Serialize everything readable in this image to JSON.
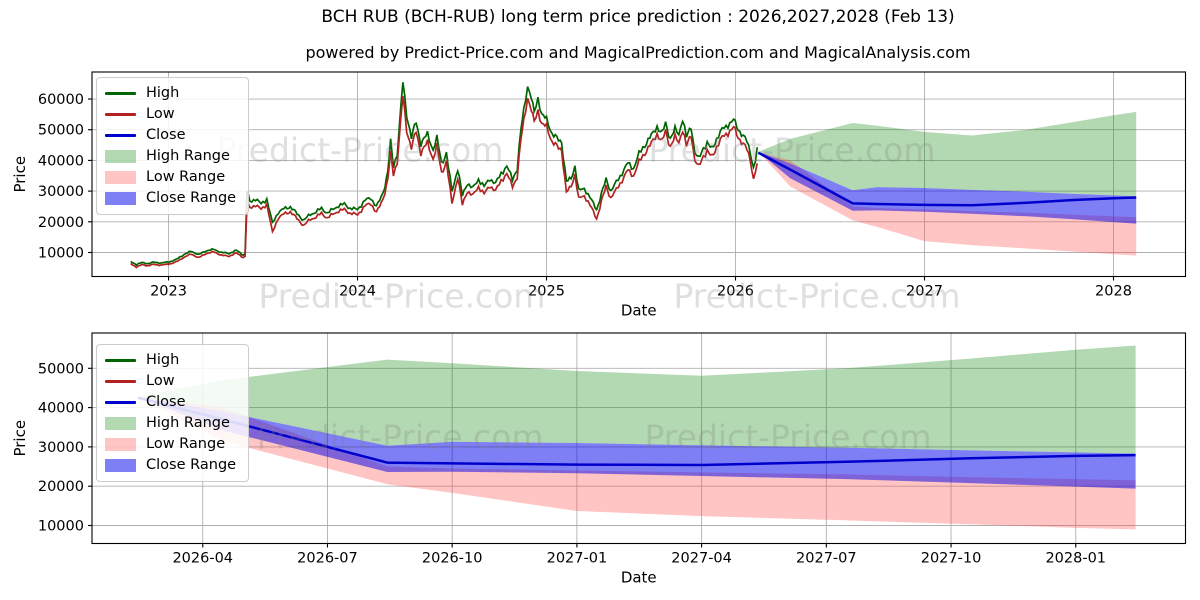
{
  "title": "BCH RUB (BCH-RUB) long term price prediction : 2026,2027,2028 (Feb 13)",
  "subtitle": "powered by Predict-Price.com and MagicalPrediction.com and MagicalAnalysis.com",
  "watermark": "Predict-Price.com",
  "colors": {
    "high_line": "#006400",
    "low_line": "#b22222",
    "close_line": "#0000cd",
    "high_band": "rgba(0,128,0,0.30)",
    "low_band": "rgba(255,70,70,0.32)",
    "close_band": "rgba(0,0,235,0.50)",
    "grid": "#b0b0b0",
    "axis": "#000000"
  },
  "legend": {
    "items": [
      {
        "label": "High",
        "swatch": "line",
        "color": "high_line"
      },
      {
        "label": "Low",
        "swatch": "line",
        "color": "low_line"
      },
      {
        "label": "Close",
        "swatch": "line",
        "color": "close_line"
      },
      {
        "label": "High Range",
        "swatch": "patch",
        "color": "high_band"
      },
      {
        "label": "Low Range",
        "swatch": "patch",
        "color": "low_band"
      },
      {
        "label": "Close Range",
        "swatch": "patch",
        "color": "close_band"
      }
    ]
  },
  "prediction": {
    "dates": [
      2026.12,
      2026.29,
      2026.62,
      2026.75,
      2027.0,
      2027.25,
      2027.54,
      2027.79,
      2028.0,
      2028.12
    ],
    "close": [
      42500,
      37000,
      26000,
      25800,
      25500,
      25400,
      26200,
      27100,
      27700,
      27900
    ],
    "high_top": [
      42800,
      47000,
      52200,
      51300,
      49300,
      48100,
      50000,
      52500,
      54700,
      55800
    ],
    "close_top": [
      42800,
      39000,
      30300,
      31300,
      31000,
      30400,
      29800,
      29100,
      28600,
      28300
    ],
    "close_bot": [
      42800,
      34200,
      23600,
      23700,
      23300,
      22600,
      21800,
      20800,
      19900,
      19400
    ],
    "low_top": [
      42800,
      40000,
      25000,
      24500,
      24000,
      23500,
      23000,
      22300,
      21800,
      21500
    ],
    "low_bot": [
      42800,
      31500,
      20500,
      18300,
      13700,
      12400,
      11300,
      10300,
      9400,
      9000
    ]
  },
  "noise": {
    "rel_amp": 0.027,
    "min_amp": 220,
    "max_amp": 1150
  },
  "chart_data": [
    {
      "type": "line",
      "name": "long-term",
      "title": "",
      "xlabel": "Date",
      "ylabel": "Price",
      "xlim": [
        2022.595,
        2028.381
      ],
      "ylim": [
        2180,
        68800
      ],
      "grid": true,
      "legend_position": "upper-left",
      "x_ticks": [
        {
          "label": "2023",
          "v": 2023
        },
        {
          "label": "2024",
          "v": 2024
        },
        {
          "label": "2025",
          "v": 2025
        },
        {
          "label": "2026",
          "v": 2026
        },
        {
          "label": "2027",
          "v": 2027
        },
        {
          "label": "2028",
          "v": 2028
        }
      ],
      "y_ticks": [
        10000,
        20000,
        30000,
        40000,
        50000,
        60000
      ],
      "historical_series_note": "triples of [decimal_year, low, high]",
      "historical": [
        [
          2022.8,
          6300,
          7000
        ],
        [
          2022.83,
          5300,
          6100
        ],
        [
          2022.86,
          6000,
          6700
        ],
        [
          2022.89,
          5700,
          6400
        ],
        [
          2022.92,
          6100,
          6800
        ],
        [
          2022.96,
          5900,
          6600
        ],
        [
          2023.0,
          6200,
          6900
        ],
        [
          2023.04,
          6900,
          7700
        ],
        [
          2023.08,
          8400,
          9300
        ],
        [
          2023.12,
          9500,
          10400
        ],
        [
          2023.16,
          8300,
          9300
        ],
        [
          2023.2,
          9700,
          10600
        ],
        [
          2023.24,
          10200,
          11000
        ],
        [
          2023.28,
          9100,
          10000
        ],
        [
          2023.32,
          8800,
          9700
        ],
        [
          2023.36,
          9800,
          10700
        ],
        [
          2023.395,
          8400,
          9200
        ],
        [
          2023.405,
          8700,
          9600
        ],
        [
          2023.415,
          26000,
          30000
        ],
        [
          2023.43,
          24500,
          26500
        ],
        [
          2023.46,
          25500,
          27500
        ],
        [
          2023.49,
          24000,
          25800
        ],
        [
          2023.52,
          25800,
          27400
        ],
        [
          2023.55,
          16500,
          19500
        ],
        [
          2023.58,
          21300,
          23100
        ],
        [
          2023.61,
          22500,
          24200
        ],
        [
          2023.645,
          23300,
          24900
        ],
        [
          2023.68,
          21000,
          22600
        ],
        [
          2023.715,
          18800,
          20500
        ],
        [
          2023.75,
          20800,
          22400
        ],
        [
          2023.78,
          21500,
          23200
        ],
        [
          2023.81,
          22800,
          24400
        ],
        [
          2023.84,
          21200,
          22800
        ],
        [
          2023.87,
          22500,
          24100
        ],
        [
          2023.9,
          23500,
          25200
        ],
        [
          2023.93,
          24000,
          25800
        ],
        [
          2023.96,
          22800,
          24400
        ],
        [
          2024.0,
          22300,
          24000
        ],
        [
          2024.04,
          25200,
          27000
        ],
        [
          2024.07,
          26000,
          27800
        ],
        [
          2024.1,
          23000,
          24900
        ],
        [
          2024.125,
          26000,
          28000
        ],
        [
          2024.145,
          29500,
          31600
        ],
        [
          2024.16,
          34000,
          36500
        ],
        [
          2024.175,
          42000,
          46000
        ],
        [
          2024.19,
          35500,
          38200
        ],
        [
          2024.21,
          39500,
          42200
        ],
        [
          2024.24,
          61000,
          65500
        ],
        [
          2024.26,
          50000,
          55000
        ],
        [
          2024.285,
          44000,
          47500
        ],
        [
          2024.31,
          49500,
          52500
        ],
        [
          2024.335,
          42500,
          45500
        ],
        [
          2024.37,
          45800,
          48600
        ],
        [
          2024.4,
          40500,
          43500
        ],
        [
          2024.42,
          44500,
          47200
        ],
        [
          2024.445,
          36000,
          39200
        ],
        [
          2024.47,
          39500,
          42200
        ],
        [
          2024.5,
          26000,
          30000
        ],
        [
          2024.53,
          34500,
          37200
        ],
        [
          2024.555,
          25500,
          28500
        ],
        [
          2024.58,
          30000,
          32600
        ],
        [
          2024.61,
          28500,
          30900
        ],
        [
          2024.64,
          31500,
          33900
        ],
        [
          2024.67,
          29000,
          31400
        ],
        [
          2024.7,
          31800,
          34100
        ],
        [
          2024.73,
          30000,
          32400
        ],
        [
          2024.76,
          33500,
          35900
        ],
        [
          2024.79,
          35500,
          37900
        ],
        [
          2024.82,
          31700,
          34100
        ],
        [
          2024.845,
          34500,
          37200
        ],
        [
          2024.865,
          47000,
          50200
        ],
        [
          2024.88,
          53000,
          56600
        ],
        [
          2024.9,
          60500,
          64300
        ],
        [
          2024.92,
          56000,
          60000
        ],
        [
          2024.935,
          52500,
          55600
        ],
        [
          2024.955,
          56500,
          60500
        ],
        [
          2024.975,
          51500,
          54600
        ],
        [
          2025.0,
          51200,
          53600
        ],
        [
          2025.03,
          46000,
          48600
        ],
        [
          2025.055,
          44500,
          47100
        ],
        [
          2025.08,
          43500,
          46100
        ],
        [
          2025.105,
          29500,
          33000
        ],
        [
          2025.13,
          31500,
          34100
        ],
        [
          2025.15,
          35500,
          38200
        ],
        [
          2025.17,
          27500,
          30100
        ],
        [
          2025.2,
          28500,
          30900
        ],
        [
          2025.23,
          25500,
          27900
        ],
        [
          2025.265,
          21000,
          24000
        ],
        [
          2025.29,
          26500,
          28900
        ],
        [
          2025.315,
          31500,
          33900
        ],
        [
          2025.34,
          27800,
          30100
        ],
        [
          2025.37,
          30500,
          32900
        ],
        [
          2025.4,
          33500,
          35900
        ],
        [
          2025.43,
          36800,
          39100
        ],
        [
          2025.46,
          35000,
          37400
        ],
        [
          2025.49,
          39500,
          42100
        ],
        [
          2025.52,
          42500,
          45100
        ],
        [
          2025.555,
          45500,
          48100
        ],
        [
          2025.585,
          48700,
          51100
        ],
        [
          2025.61,
          46000,
          48600
        ],
        [
          2025.63,
          49500,
          52100
        ],
        [
          2025.655,
          44500,
          47100
        ],
        [
          2025.68,
          47500,
          50100
        ],
        [
          2025.7,
          46000,
          48600
        ],
        [
          2025.72,
          50000,
          53500
        ],
        [
          2025.74,
          44600,
          47500
        ],
        [
          2025.765,
          48500,
          51100
        ],
        [
          2025.785,
          40000,
          42600
        ],
        [
          2025.805,
          37800,
          40400
        ],
        [
          2025.83,
          41500,
          44100
        ],
        [
          2025.85,
          43000,
          45600
        ],
        [
          2025.875,
          41000,
          43600
        ],
        [
          2025.9,
          44500,
          47100
        ],
        [
          2025.93,
          47500,
          50100
        ],
        [
          2025.96,
          49000,
          51600
        ],
        [
          2025.99,
          50600,
          53100
        ],
        [
          2026.015,
          47500,
          50100
        ],
        [
          2026.04,
          45500,
          48100
        ],
        [
          2026.06,
          43500,
          46100
        ],
        [
          2026.08,
          40000,
          42600
        ],
        [
          2026.095,
          33800,
          37500
        ],
        [
          2026.105,
          36500,
          40000
        ],
        [
          2026.115,
          38200,
          43400
        ]
      ]
    },
    {
      "type": "line",
      "name": "prediction-detail",
      "title": "",
      "xlabel": "Date",
      "ylabel": "Price",
      "xlim": [
        2026.028,
        2028.22
      ],
      "ylim": [
        5420,
        58980
      ],
      "grid": true,
      "legend_position": "upper-left",
      "x_ticks": [
        {
          "label": "2026-04",
          "v": 2026.25
        },
        {
          "label": "2026-07",
          "v": 2026.5
        },
        {
          "label": "2026-10",
          "v": 2026.75
        },
        {
          "label": "2027-01",
          "v": 2027.0
        },
        {
          "label": "2027-04",
          "v": 2027.25
        },
        {
          "label": "2027-07",
          "v": 2027.5
        },
        {
          "label": "2027-10",
          "v": 2027.75
        },
        {
          "label": "2028-01",
          "v": 2028.0
        }
      ],
      "y_ticks": [
        10000,
        20000,
        30000,
        40000,
        50000
      ]
    }
  ]
}
